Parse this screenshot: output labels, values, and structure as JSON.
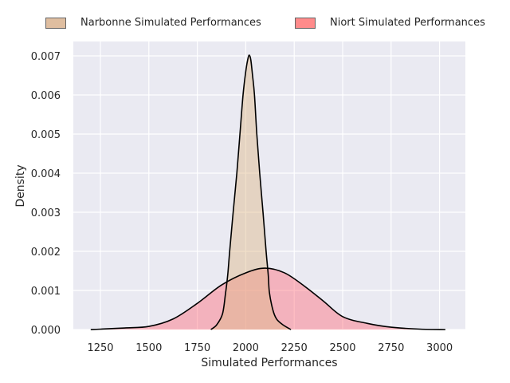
{
  "chart_data": {
    "type": "area",
    "title": "",
    "xlabel": "Simulated Performances",
    "ylabel": "Density",
    "xlim": [
      1110,
      3130
    ],
    "ylim": [
      0,
      0.00735
    ],
    "xticks": [
      1250,
      1500,
      1750,
      2000,
      2250,
      2500,
      2750,
      3000
    ],
    "xtick_labels": [
      "1250",
      "1500",
      "1750",
      "2000",
      "2250",
      "2500",
      "2750",
      "3000"
    ],
    "yticks": [
      0,
      0.001,
      0.002,
      0.003,
      0.004,
      0.005,
      0.006,
      0.007
    ],
    "ytick_labels": [
      "0.000",
      "0.001",
      "0.002",
      "0.003",
      "0.004",
      "0.005",
      "0.006",
      "0.007"
    ],
    "grid": true,
    "legend_position": "top, outside",
    "series": [
      {
        "name": "Narbonne Simulated Performances",
        "color": "#deb887",
        "x": [
          1820,
          1850,
          1880,
          1895,
          1907,
          1917,
          1935,
          1954,
          1970,
          1986,
          2000,
          2010,
          2018,
          2026,
          2035,
          2045,
          2057,
          2072,
          2089,
          2105,
          2116,
          2122,
          2140,
          2159,
          2192,
          2233
        ],
        "y": [
          0,
          0.00012,
          0.0004,
          0.0009,
          0.0014,
          0.002,
          0.003,
          0.004,
          0.005,
          0.006,
          0.0066,
          0.0069,
          0.00702,
          0.0069,
          0.0065,
          0.006,
          0.005,
          0.004,
          0.003,
          0.002,
          0.0014,
          0.00095,
          0.0005,
          0.00027,
          0.00012,
          0
        ]
      },
      {
        "name": "Niort Simulated Performances",
        "color": "#ff7f7f",
        "x": [
          1200,
          1250,
          1375,
          1500,
          1625,
          1750,
          1875,
          2000,
          2100,
          2200,
          2300,
          2400,
          2500,
          2625,
          2750,
          2900,
          3030
        ],
        "y": [
          0,
          1e-05,
          4e-05,
          8e-05,
          0.00027,
          0.00067,
          0.00114,
          0.00145,
          0.00157,
          0.00145,
          0.00112,
          0.00073,
          0.00033,
          0.00016,
          6e-05,
          1e-05,
          0
        ]
      }
    ]
  }
}
